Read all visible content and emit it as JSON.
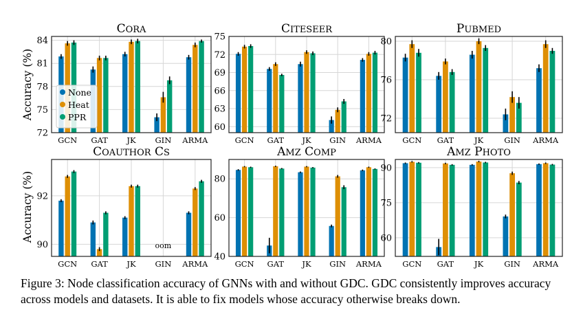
{
  "figure": {
    "ylabel": "Accuracy (%)",
    "caption": "Figure 3: Node classification accuracy of GNNs with and without GDC. GDC consistently improves accuracy across models and datasets. It is able to fix models whose accuracy otherwise breaks down.",
    "legend": [
      "None",
      "Heat",
      "PPR"
    ],
    "legend_placement": "left, inside first panel",
    "colors": {
      "None": "#0173b2",
      "Heat": "#de8f05",
      "PPR": "#029e73"
    }
  },
  "chart_data": [
    {
      "type": "bar",
      "title": "Cora",
      "categories": [
        "GCN",
        "GAT",
        "JK",
        "GIN",
        "ARMA"
      ],
      "ylim": [
        72,
        84.5
      ],
      "yticks": [
        72,
        75,
        78,
        81,
        84
      ],
      "series": [
        {
          "name": "None",
          "values": [
            81.9,
            80.2,
            82.2,
            74.0,
            81.8
          ],
          "errors": [
            0.3,
            0.4,
            0.3,
            0.5,
            0.3
          ]
        },
        {
          "name": "Heat",
          "values": [
            83.6,
            81.7,
            83.8,
            76.6,
            83.4
          ],
          "errors": [
            0.3,
            0.3,
            0.3,
            0.7,
            0.3
          ]
        },
        {
          "name": "PPR",
          "values": [
            83.7,
            81.7,
            83.9,
            78.8,
            83.9
          ],
          "errors": [
            0.3,
            0.3,
            0.3,
            0.5,
            0.2
          ]
        }
      ]
    },
    {
      "type": "bar",
      "title": "Citeseer",
      "categories": [
        "GCN",
        "GAT",
        "JK",
        "GIN",
        "ARMA"
      ],
      "ylim": [
        59,
        75
      ],
      "yticks": [
        60,
        63,
        66,
        69,
        72,
        75
      ],
      "series": [
        {
          "name": "None",
          "values": [
            72.1,
            69.6,
            70.4,
            61.1,
            71.1
          ],
          "errors": [
            0.3,
            0.3,
            0.4,
            0.6,
            0.3
          ]
        },
        {
          "name": "Heat",
          "values": [
            73.3,
            70.4,
            72.4,
            62.8,
            72.1
          ],
          "errors": [
            0.3,
            0.3,
            0.3,
            0.4,
            0.3
          ]
        },
        {
          "name": "PPR",
          "values": [
            73.4,
            68.6,
            72.2,
            64.2,
            72.3
          ],
          "errors": [
            0.3,
            0.2,
            0.3,
            0.4,
            0.3
          ]
        }
      ]
    },
    {
      "type": "bar",
      "title": "PubMed",
      "categories": [
        "GCN",
        "GAT",
        "JK",
        "GIN",
        "ARMA"
      ],
      "ylim": [
        70.5,
        80.5
      ],
      "yticks": [
        72,
        76,
        80
      ],
      "series": [
        {
          "name": "None",
          "values": [
            78.3,
            76.4,
            78.6,
            72.4,
            77.2
          ],
          "errors": [
            0.4,
            0.4,
            0.4,
            0.6,
            0.4
          ]
        },
        {
          "name": "Heat",
          "values": [
            79.7,
            77.9,
            80.0,
            74.2,
            79.7
          ],
          "errors": [
            0.4,
            0.3,
            0.3,
            0.6,
            0.4
          ]
        },
        {
          "name": "PPR",
          "values": [
            78.8,
            76.8,
            79.3,
            73.6,
            79.0
          ],
          "errors": [
            0.4,
            0.3,
            0.3,
            0.6,
            0.3
          ]
        }
      ]
    },
    {
      "type": "bar",
      "title": "Coauthor CS",
      "categories": [
        "GCN",
        "GAT",
        "JK",
        "GIN",
        "ARMA"
      ],
      "ylim": [
        89.5,
        93.5
      ],
      "yticks": [
        90,
        92
      ],
      "annotations": [
        {
          "category": "GIN",
          "text": "oom"
        }
      ],
      "series": [
        {
          "name": "None",
          "values": [
            91.8,
            90.9,
            91.1,
            null,
            91.3
          ],
          "errors": [
            0.06,
            0.08,
            0.06,
            null,
            0.06
          ]
        },
        {
          "name": "Heat",
          "values": [
            92.8,
            89.8,
            92.4,
            null,
            92.3
          ],
          "errors": [
            0.06,
            0.08,
            0.06,
            null,
            0.06
          ]
        },
        {
          "name": "PPR",
          "values": [
            93.0,
            91.3,
            92.4,
            null,
            92.6
          ],
          "errors": [
            0.06,
            0.06,
            0.06,
            null,
            0.06
          ]
        }
      ]
    },
    {
      "type": "bar",
      "title": "Amz Comp",
      "categories": [
        "GCN",
        "GAT",
        "JK",
        "GIN",
        "ARMA"
      ],
      "ylim": [
        40,
        90
      ],
      "yticks": [
        40,
        60,
        80
      ],
      "series": [
        {
          "name": "None",
          "values": [
            84.6,
            45.6,
            83.4,
            55.7,
            84.4
          ],
          "errors": [
            0.4,
            4.0,
            0.4,
            0.7,
            0.4
          ]
        },
        {
          "name": "Heat",
          "values": [
            86.3,
            86.5,
            86.3,
            81.3,
            86.0
          ],
          "errors": [
            0.3,
            0.3,
            0.3,
            0.7,
            0.3
          ]
        },
        {
          "name": "PPR",
          "values": [
            86.0,
            85.3,
            85.8,
            75.7,
            85.1
          ],
          "errors": [
            0.3,
            0.3,
            0.3,
            1.0,
            0.3
          ]
        }
      ]
    },
    {
      "type": "bar",
      "title": "Amz Photo",
      "categories": [
        "GCN",
        "GAT",
        "JK",
        "GIN",
        "ARMA"
      ],
      "ylim": [
        52,
        93.5
      ],
      "yticks": [
        60,
        75,
        90
      ],
      "series": [
        {
          "name": "None",
          "values": [
            91.9,
            56.0,
            91.2,
            69.1,
            91.5
          ],
          "errors": [
            0.3,
            3.5,
            0.3,
            0.8,
            0.3
          ]
        },
        {
          "name": "Heat",
          "values": [
            92.5,
            91.8,
            92.6,
            87.6,
            91.9
          ],
          "errors": [
            0.3,
            0.3,
            0.3,
            0.7,
            0.3
          ]
        },
        {
          "name": "PPR",
          "values": [
            92.1,
            91.2,
            92.2,
            83.6,
            91.3
          ],
          "errors": [
            0.3,
            0.3,
            0.3,
            0.7,
            0.3
          ]
        }
      ]
    }
  ]
}
